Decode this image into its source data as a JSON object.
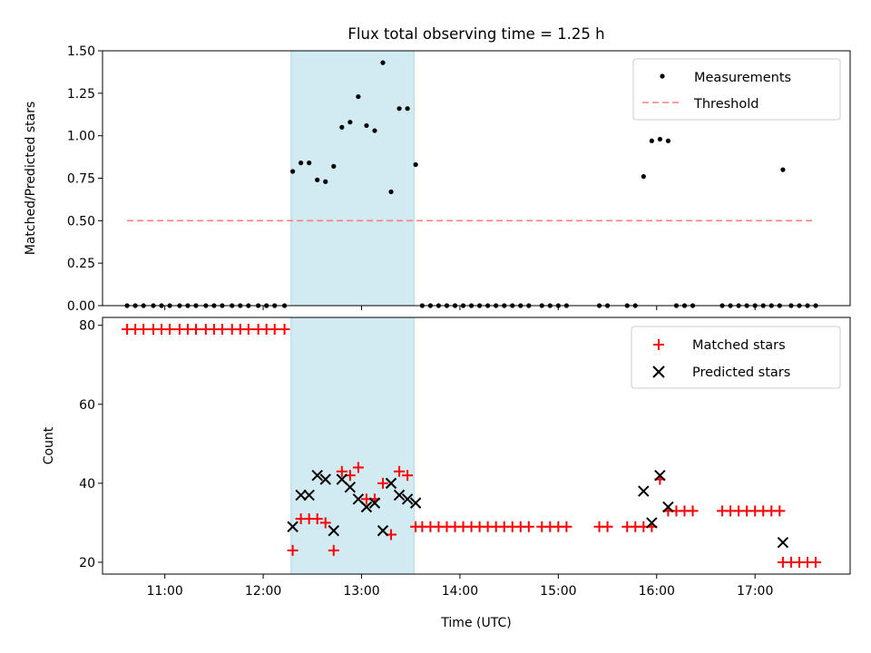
{
  "title": "Flux total observing time = 1.25 h",
  "xlabel": "Time (UTC)",
  "x_ticks": [
    "11:00",
    "12:00",
    "13:00",
    "14:00",
    "15:00",
    "16:00",
    "17:00"
  ],
  "colors": {
    "span": "#add8e6",
    "threshold": "#ff7f7f",
    "matched": "#ff0000",
    "predicted": "#000000",
    "measurement": "#000000"
  },
  "chart_data": [
    {
      "type": "scatter",
      "ylabel": "Matched/Predicted stars",
      "xlim": [
        "10:22",
        "17:58"
      ],
      "ylim": [
        0,
        1.5
      ],
      "y_ticks": [
        "0.00",
        "0.25",
        "0.50",
        "0.75",
        "1.00",
        "1.25",
        "1.50"
      ],
      "shaded_span": [
        "12:17",
        "13:32"
      ],
      "legend_position": "top-right",
      "series": [
        {
          "name": "Measurements",
          "marker": "dot",
          "points": [
            [
              "10:37",
              0
            ],
            [
              "10:42",
              0
            ],
            [
              "10:47",
              0
            ],
            [
              "10:53",
              0
            ],
            [
              "10:58",
              0
            ],
            [
              "11:03",
              0
            ],
            [
              "11:09",
              0
            ],
            [
              "11:14",
              0
            ],
            [
              "11:19",
              0
            ],
            [
              "11:25",
              0
            ],
            [
              "11:30",
              0
            ],
            [
              "11:35",
              0
            ],
            [
              "11:41",
              0
            ],
            [
              "11:46",
              0
            ],
            [
              "11:51",
              0
            ],
            [
              "11:57",
              0
            ],
            [
              "12:02",
              0
            ],
            [
              "12:07",
              0
            ],
            [
              "12:13",
              0
            ],
            [
              "12:18",
              0.79
            ],
            [
              "12:23",
              0.84
            ],
            [
              "12:28",
              0.84
            ],
            [
              "12:33",
              0.74
            ],
            [
              "12:38",
              0.73
            ],
            [
              "12:43",
              0.82
            ],
            [
              "12:48",
              1.05
            ],
            [
              "12:53",
              1.08
            ],
            [
              "12:58",
              1.23
            ],
            [
              "13:03",
              1.06
            ],
            [
              "13:08",
              1.03
            ],
            [
              "13:13",
              1.43
            ],
            [
              "13:18",
              0.67
            ],
            [
              "13:23",
              1.16
            ],
            [
              "13:28",
              1.16
            ],
            [
              "13:33",
              0.83
            ],
            [
              "13:37",
              0
            ],
            [
              "13:42",
              0
            ],
            [
              "13:47",
              0
            ],
            [
              "13:52",
              0
            ],
            [
              "13:57",
              0
            ],
            [
              "14:02",
              0
            ],
            [
              "14:07",
              0
            ],
            [
              "14:12",
              0
            ],
            [
              "14:17",
              0
            ],
            [
              "14:22",
              0
            ],
            [
              "14:27",
              0
            ],
            [
              "14:32",
              0
            ],
            [
              "14:37",
              0
            ],
            [
              "14:42",
              0
            ],
            [
              "14:50",
              0
            ],
            [
              "14:55",
              0
            ],
            [
              "15:00",
              0
            ],
            [
              "15:05",
              0
            ],
            [
              "15:25",
              0
            ],
            [
              "15:30",
              0
            ],
            [
              "15:42",
              0
            ],
            [
              "15:47",
              0
            ],
            [
              "15:52",
              0.76
            ],
            [
              "15:57",
              0.97
            ],
            [
              "16:02",
              0.98
            ],
            [
              "16:07",
              0.97
            ],
            [
              "16:12",
              0
            ],
            [
              "16:17",
              0
            ],
            [
              "16:22",
              0
            ],
            [
              "16:40",
              0
            ],
            [
              "16:45",
              0
            ],
            [
              "16:50",
              0
            ],
            [
              "16:55",
              0
            ],
            [
              "17:00",
              0
            ],
            [
              "17:05",
              0
            ],
            [
              "17:10",
              0
            ],
            [
              "17:15",
              0
            ],
            [
              "17:17",
              0.8
            ],
            [
              "17:22",
              0
            ],
            [
              "17:27",
              0
            ],
            [
              "17:32",
              0
            ],
            [
              "17:37",
              0
            ]
          ]
        },
        {
          "name": "Threshold",
          "line_style": "dashed",
          "points": [
            [
              "10:37",
              0.5
            ],
            [
              "17:37",
              0.5
            ]
          ]
        }
      ]
    },
    {
      "type": "scatter",
      "ylabel": "Count",
      "xlim": [
        "10:22",
        "17:58"
      ],
      "ylim": [
        17,
        82
      ],
      "y_ticks": [
        "20",
        "40",
        "60",
        "80"
      ],
      "shaded_span": [
        "12:17",
        "13:32"
      ],
      "legend_position": "top-right",
      "series": [
        {
          "name": "Matched stars",
          "marker": "plus",
          "points": [
            [
              "10:37",
              79
            ],
            [
              "10:42",
              79
            ],
            [
              "10:47",
              79
            ],
            [
              "10:53",
              79
            ],
            [
              "10:58",
              79
            ],
            [
              "11:03",
              79
            ],
            [
              "11:09",
              79
            ],
            [
              "11:14",
              79
            ],
            [
              "11:19",
              79
            ],
            [
              "11:25",
              79
            ],
            [
              "11:30",
              79
            ],
            [
              "11:35",
              79
            ],
            [
              "11:41",
              79
            ],
            [
              "11:46",
              79
            ],
            [
              "11:51",
              79
            ],
            [
              "11:57",
              79
            ],
            [
              "12:02",
              79
            ],
            [
              "12:07",
              79
            ],
            [
              "12:13",
              79
            ],
            [
              "12:18",
              23
            ],
            [
              "12:23",
              31
            ],
            [
              "12:28",
              31
            ],
            [
              "12:33",
              31
            ],
            [
              "12:38",
              30
            ],
            [
              "12:43",
              23
            ],
            [
              "12:48",
              43
            ],
            [
              "12:53",
              42
            ],
            [
              "12:58",
              44
            ],
            [
              "13:03",
              36
            ],
            [
              "13:08",
              36
            ],
            [
              "13:13",
              40
            ],
            [
              "13:18",
              27
            ],
            [
              "13:23",
              43
            ],
            [
              "13:28",
              42
            ],
            [
              "13:33",
              29
            ],
            [
              "13:37",
              29
            ],
            [
              "13:42",
              29
            ],
            [
              "13:47",
              29
            ],
            [
              "13:52",
              29
            ],
            [
              "13:57",
              29
            ],
            [
              "14:02",
              29
            ],
            [
              "14:07",
              29
            ],
            [
              "14:12",
              29
            ],
            [
              "14:17",
              29
            ],
            [
              "14:22",
              29
            ],
            [
              "14:27",
              29
            ],
            [
              "14:32",
              29
            ],
            [
              "14:37",
              29
            ],
            [
              "14:42",
              29
            ],
            [
              "14:50",
              29
            ],
            [
              "14:55",
              29
            ],
            [
              "15:00",
              29
            ],
            [
              "15:05",
              29
            ],
            [
              "15:25",
              29
            ],
            [
              "15:30",
              29
            ],
            [
              "15:42",
              29
            ],
            [
              "15:47",
              29
            ],
            [
              "15:52",
              29
            ],
            [
              "15:57",
              29
            ],
            [
              "16:02",
              41
            ],
            [
              "16:07",
              33
            ],
            [
              "16:12",
              33
            ],
            [
              "16:17",
              33
            ],
            [
              "16:22",
              33
            ],
            [
              "16:40",
              33
            ],
            [
              "16:45",
              33
            ],
            [
              "16:50",
              33
            ],
            [
              "16:55",
              33
            ],
            [
              "17:00",
              33
            ],
            [
              "17:05",
              33
            ],
            [
              "17:10",
              33
            ],
            [
              "17:15",
              33
            ],
            [
              "17:17",
              20
            ],
            [
              "17:22",
              20
            ],
            [
              "17:27",
              20
            ],
            [
              "17:32",
              20
            ],
            [
              "17:37",
              20
            ]
          ]
        },
        {
          "name": "Predicted stars",
          "marker": "x",
          "points": [
            [
              "12:18",
              29
            ],
            [
              "12:23",
              37
            ],
            [
              "12:28",
              37
            ],
            [
              "12:33",
              42
            ],
            [
              "12:38",
              41
            ],
            [
              "12:43",
              28
            ],
            [
              "12:48",
              41
            ],
            [
              "12:53",
              39
            ],
            [
              "12:58",
              36
            ],
            [
              "13:03",
              34
            ],
            [
              "13:08",
              35
            ],
            [
              "13:13",
              28
            ],
            [
              "13:18",
              40
            ],
            [
              "13:23",
              37
            ],
            [
              "13:28",
              36
            ],
            [
              "13:33",
              35
            ],
            [
              "15:52",
              38
            ],
            [
              "15:57",
              30
            ],
            [
              "16:02",
              42
            ],
            [
              "16:07",
              34
            ],
            [
              "17:17",
              25
            ]
          ]
        }
      ]
    }
  ]
}
